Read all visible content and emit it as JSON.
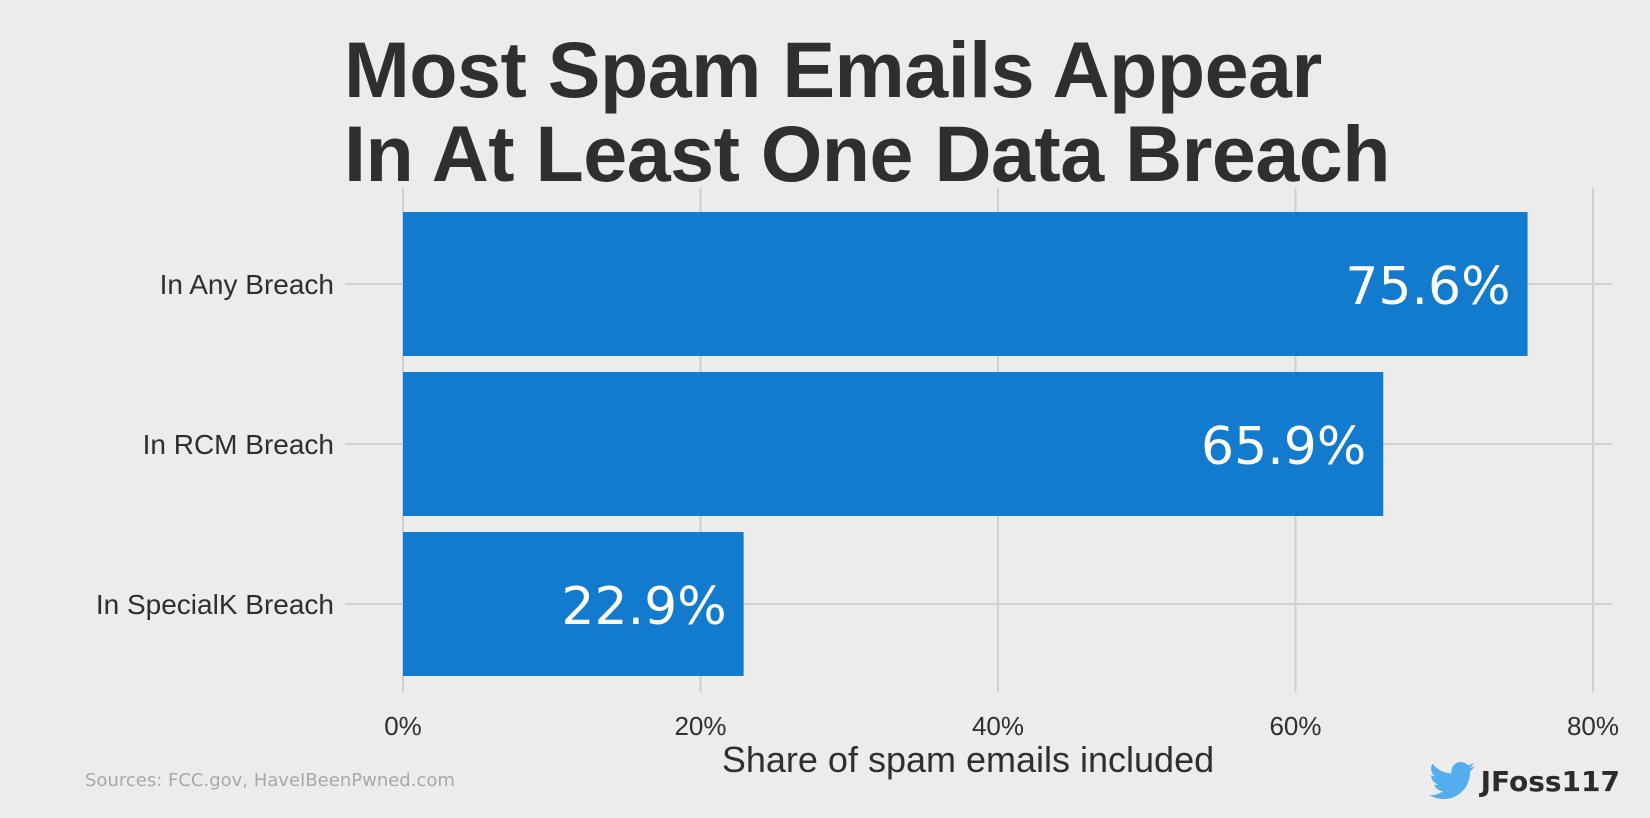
{
  "title_lines": [
    "Most Spam Emails Appear",
    "In At Least One Data Breach"
  ],
  "footer": {
    "source": "Sources: FCC.gov, HaveIBeenPwned.com",
    "handle": "JFoss117"
  },
  "colors": {
    "bar": "#127bcd",
    "grid": "#cfcfcf",
    "background": "#ececec",
    "text": "#2f2f2f"
  },
  "chart_data": {
    "type": "bar",
    "orientation": "horizontal",
    "title": "Most Spam Emails Appear In At Least One Data Breach",
    "categories": [
      "In Any Breach",
      "In RCM Breach",
      "In SpecialK Breach"
    ],
    "values": [
      75.6,
      65.9,
      22.9
    ],
    "data_labels": [
      "75.6%",
      "65.9%",
      "22.9%"
    ],
    "xlabel": "Share of spam emails included",
    "ylabel": "",
    "xlim": [
      0,
      80
    ],
    "x_ticks": [
      0,
      20,
      40,
      60,
      80
    ],
    "x_tick_labels": [
      "0%",
      "20%",
      "40%",
      "60%",
      "80%"
    ],
    "grid": true
  }
}
